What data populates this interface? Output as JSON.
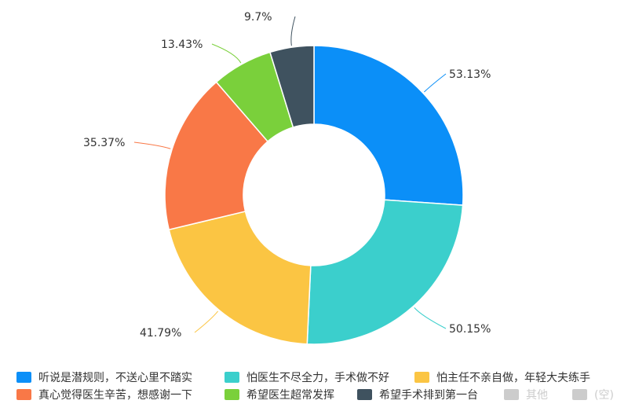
{
  "chart_data": {
    "type": "pie",
    "style": "donut",
    "categories": [
      "听说是潜规则，不送心里不踏实",
      "怕医生不尽全力，手术做不好",
      "怕主任不亲自做，年轻大夫练手",
      "真心觉得医生辛苦，想感谢一下",
      "希望医生超常发挥",
      "希望手术排到第一台"
    ],
    "values": [
      53.13,
      50.15,
      41.79,
      35.37,
      13.43,
      9.7
    ],
    "labels": [
      "53.13%",
      "50.15%",
      "41.79%",
      "35.37%",
      "13.43%",
      "9.7%"
    ],
    "colors": [
      "#0b8ff8",
      "#3bcfcc",
      "#fbc543",
      "#f97847",
      "#7ad03b",
      "#3f525f"
    ],
    "legend_position": "bottom",
    "legend": [
      {
        "label": "听说是潜规则，不送心里不踏实",
        "color": "#0b8ff8",
        "active": true
      },
      {
        "label": "怕医生不尽全力，手术做不好",
        "color": "#3bcfcc",
        "active": true
      },
      {
        "label": "怕主任不亲自做，年轻大夫练手",
        "color": "#fbc543",
        "active": true
      },
      {
        "label": "真心觉得医生辛苦，想感谢一下",
        "color": "#f97847",
        "active": true
      },
      {
        "label": "希望医生超常发挥",
        "color": "#7ad03b",
        "active": true
      },
      {
        "label": "希望手术排到第一台",
        "color": "#3f525f",
        "active": true
      },
      {
        "label": "其他",
        "color": "#cccccc",
        "active": false
      },
      {
        "label": "(空)",
        "color": "#cccccc",
        "active": false
      }
    ]
  }
}
